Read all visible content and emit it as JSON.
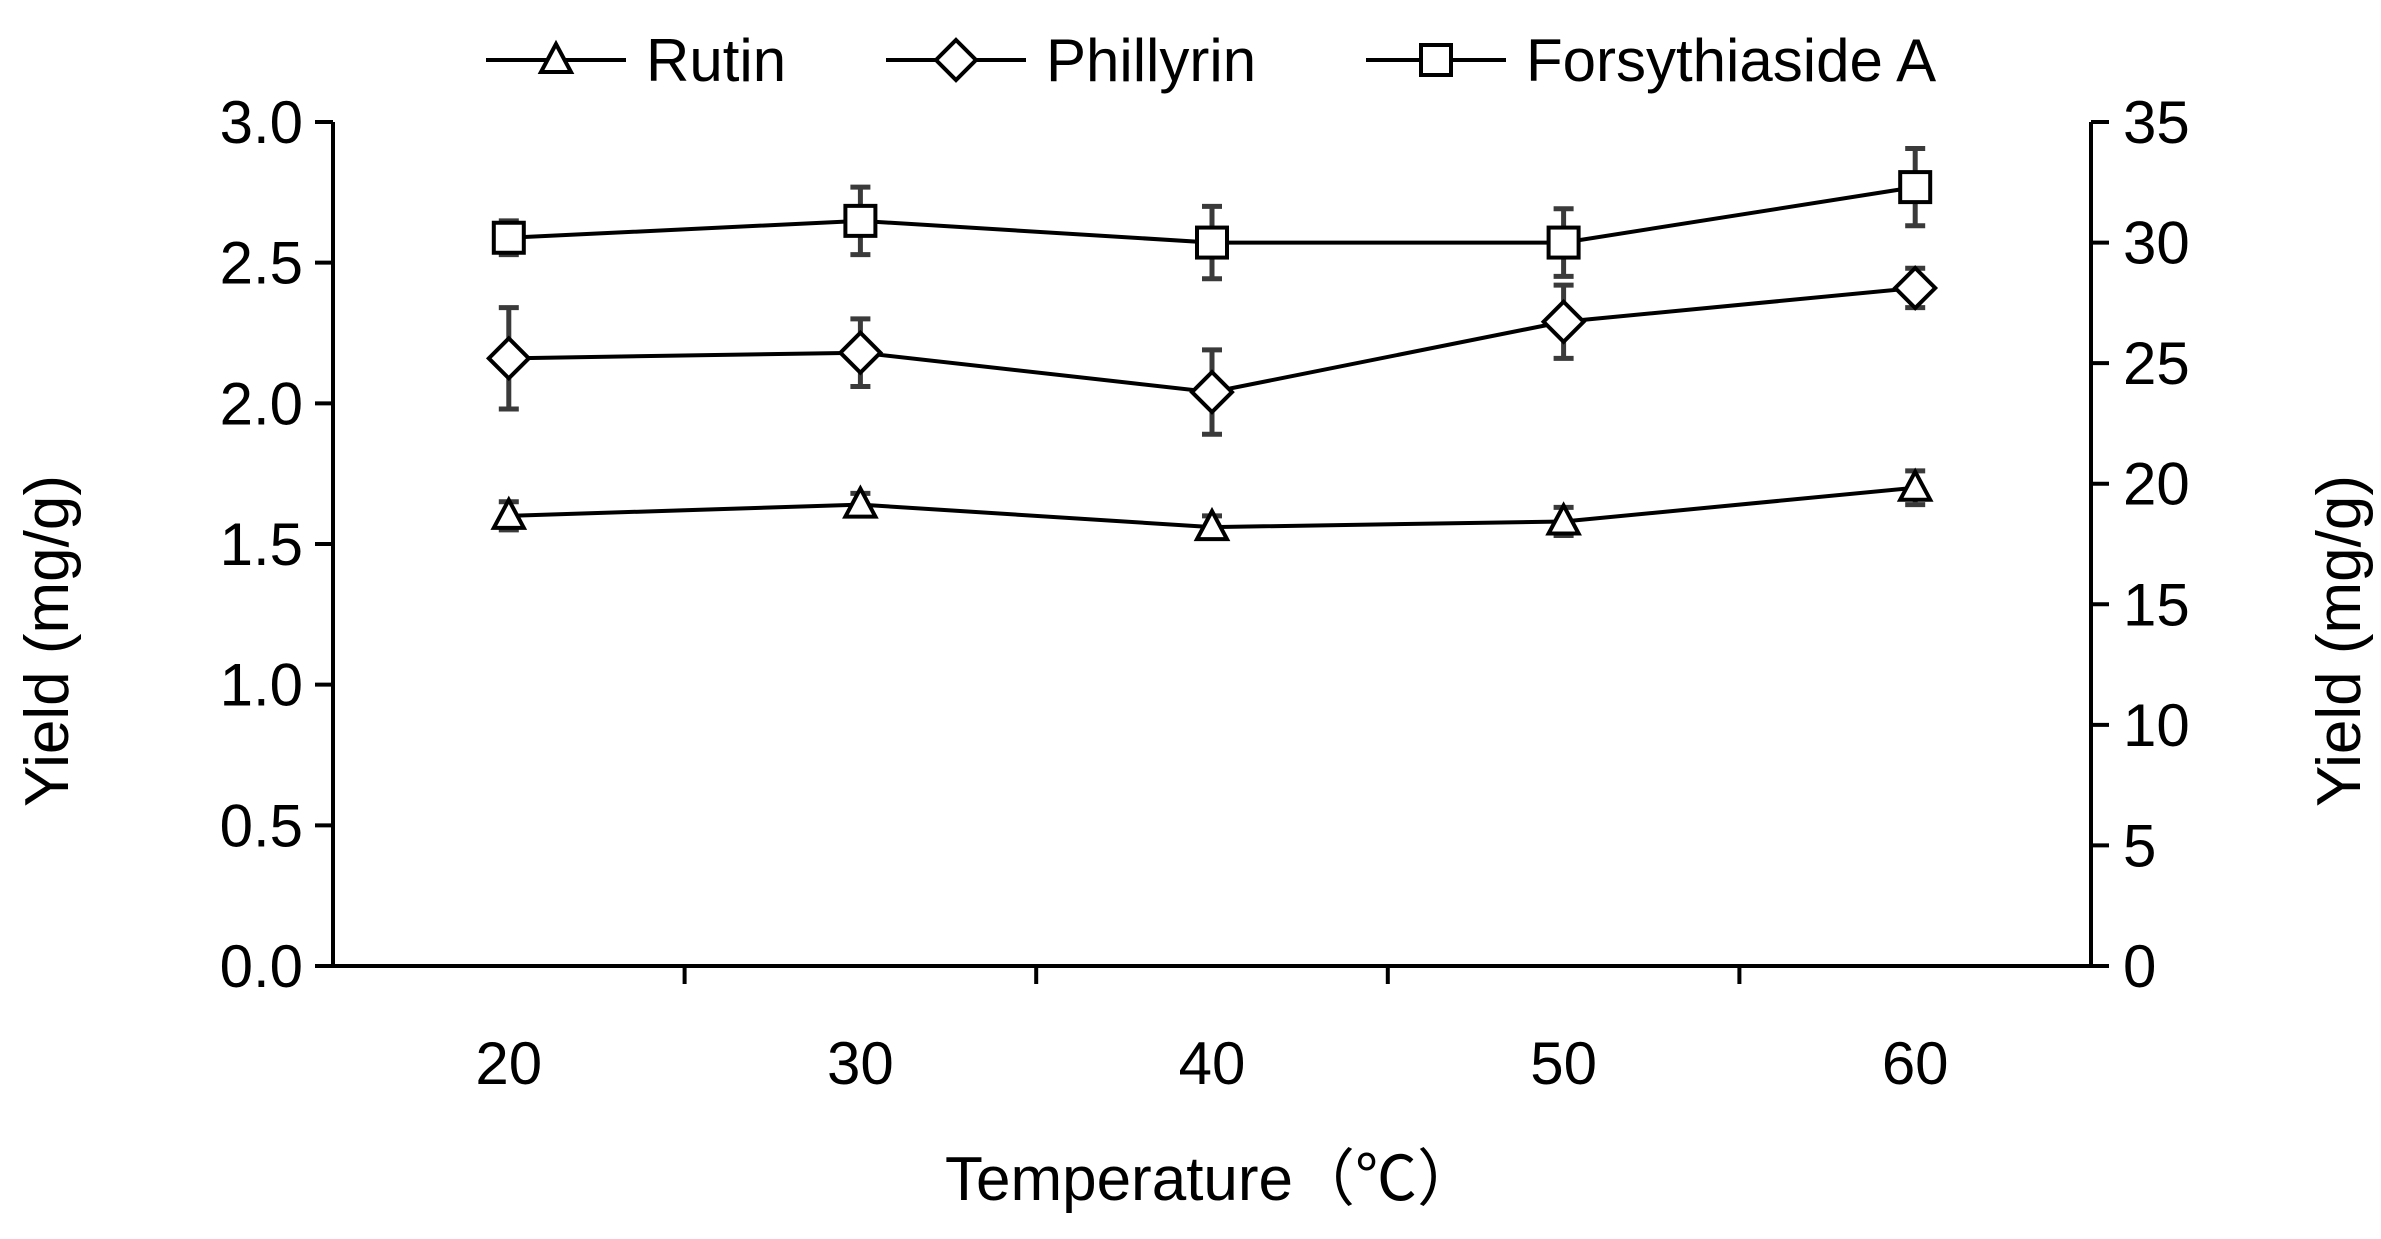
{
  "chart_data": {
    "type": "line",
    "x": [
      20,
      30,
      40,
      50,
      60
    ],
    "xlabel": "Temperature（℃）",
    "ylabel": "Yield (mg/g)",
    "y2label": "Yield (mg/g)",
    "ylim": [
      0,
      3.0
    ],
    "y2lim": [
      0,
      35
    ],
    "yticks": [
      0.0,
      0.5,
      1.0,
      1.5,
      2.0,
      2.5,
      3.0
    ],
    "yticklabels": [
      "0.0",
      "0.5",
      "1.0",
      "1.5",
      "2.0",
      "2.5",
      "3.0"
    ],
    "y2ticks": [
      0,
      5,
      10,
      15,
      20,
      25,
      30,
      35
    ],
    "y2ticklabels": [
      "0",
      "5",
      "10",
      "15",
      "20",
      "25",
      "30",
      "35"
    ],
    "xticklabels": [
      "20",
      "30",
      "40",
      "50",
      "60"
    ],
    "grid": false,
    "legend": "top",
    "series": [
      {
        "name": "Rutin",
        "axis": "left",
        "marker": "triangle",
        "values": [
          1.6,
          1.64,
          1.56,
          1.58,
          1.7
        ],
        "errors": [
          0.05,
          0.04,
          0.04,
          0.05,
          0.06
        ]
      },
      {
        "name": "Phillyrin",
        "axis": "left",
        "marker": "diamond",
        "values": [
          2.16,
          2.18,
          2.04,
          2.29,
          2.41
        ],
        "errors": [
          0.18,
          0.12,
          0.15,
          0.13,
          0.07
        ]
      },
      {
        "name": "Forsythiaside A",
        "axis": "right",
        "marker": "square",
        "values": [
          30.2,
          30.9,
          30.0,
          30.0,
          32.3
        ],
        "errors": [
          0.7,
          1.4,
          1.5,
          1.4,
          1.6
        ]
      }
    ]
  }
}
